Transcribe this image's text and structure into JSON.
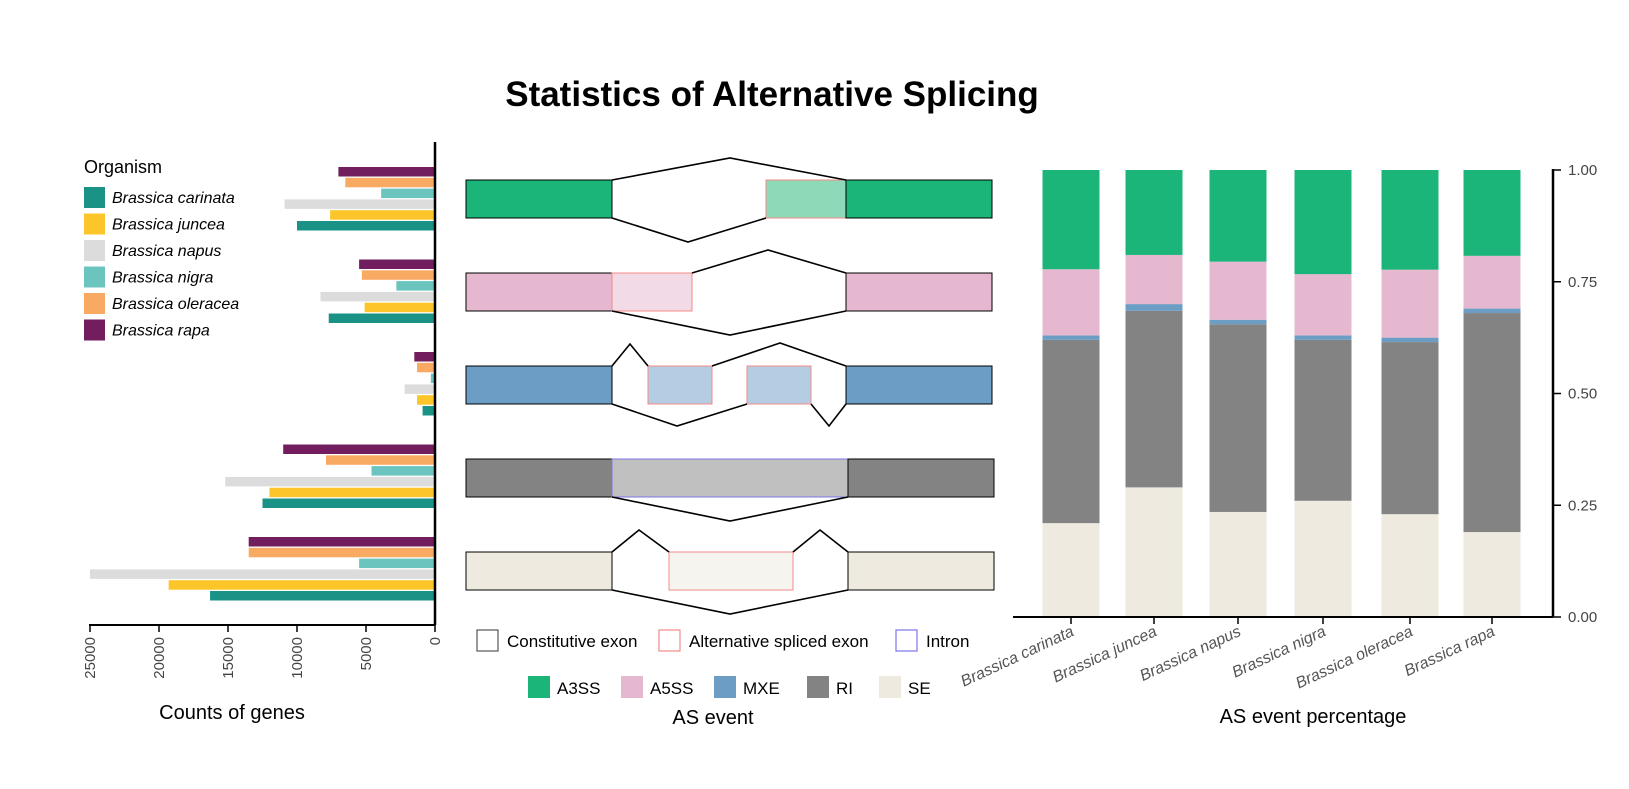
{
  "title": "Statistics of Alternative Splicing",
  "colors": {
    "organisms": [
      "#1a9386",
      "#fcc62a",
      "#dcdcdc",
      "#6cc4bf",
      "#f8aa62",
      "#721d5e"
    ],
    "events": {
      "A3SS": "#1bb479",
      "A5SS": "#e5b8cf",
      "MXE": "#6c9dc5",
      "RI": "#838383",
      "SE": "#eeeadf"
    },
    "events_light": {
      "A3SS": "#8dd9b8",
      "A5SS": "#f2dae6",
      "MXE": "#b5cde3",
      "RI": "#c0c0c1",
      "SE": "#f6f4ee"
    },
    "exon_border_alternative": "#f28a8a",
    "intron_border": "#7b74e8"
  },
  "chart_data": [
    {
      "type": "bar",
      "orientation": "horizontal",
      "xlabel": "Counts of genes",
      "xlim": [
        0,
        25000
      ],
      "x_reversed": true,
      "ticks": [
        0,
        5000,
        10000,
        15000,
        20000,
        25000
      ],
      "legend": {
        "title": "Organism",
        "placement": "top-left",
        "entries": [
          "Brassica carinata",
          "Brassica juncea",
          "Brassica napus",
          "Brassica nigra",
          "Brassica oleracea",
          "Brassica rapa"
        ]
      },
      "categories": [
        "A3SS",
        "A5SS",
        "MXE",
        "RI",
        "SE"
      ],
      "series": [
        {
          "name": "Brassica carinata",
          "values": [
            10000,
            7700,
            900,
            12500,
            16300
          ]
        },
        {
          "name": "Brassica juncea",
          "values": [
            7600,
            5100,
            1300,
            12000,
            19300
          ]
        },
        {
          "name": "Brassica napus",
          "values": [
            10900,
            8300,
            2200,
            15200,
            25000
          ]
        },
        {
          "name": "Brassica nigra",
          "values": [
            3900,
            2800,
            300,
            4600,
            5500
          ]
        },
        {
          "name": "Brassica oleracea",
          "values": [
            6500,
            5300,
            1300,
            7900,
            13500
          ]
        },
        {
          "name": "Brassica rapa",
          "values": [
            7000,
            5500,
            1500,
            11000,
            13500
          ]
        }
      ]
    },
    {
      "type": "bar",
      "stacked": true,
      "xlabel": "AS event percentage",
      "ylim": [
        0,
        1
      ],
      "y_axis_side": "right",
      "yticks": [
        "0.00",
        "0.25",
        "0.50",
        "0.75",
        "1.00"
      ],
      "categories": [
        "Brassica carinata",
        "Brassica juncea",
        "Brassica napus",
        "Brassica nigra",
        "Brassica oleracea",
        "Brassica rapa"
      ],
      "series": [
        {
          "name": "SE",
          "values": [
            0.21,
            0.29,
            0.235,
            0.26,
            0.23,
            0.19
          ]
        },
        {
          "name": "RI",
          "values": [
            0.41,
            0.395,
            0.42,
            0.36,
            0.385,
            0.49
          ]
        },
        {
          "name": "MXE",
          "values": [
            0.01,
            0.015,
            0.01,
            0.01,
            0.01,
            0.01
          ]
        },
        {
          "name": "A5SS",
          "values": [
            0.148,
            0.11,
            0.13,
            0.137,
            0.152,
            0.118
          ]
        },
        {
          "name": "A3SS",
          "values": [
            0.222,
            0.19,
            0.205,
            0.233,
            0.223,
            0.192
          ]
        }
      ]
    }
  ],
  "diagram": {
    "xlabel": "AS event",
    "exon_legend": [
      "Constitutive exon",
      "Alternative spliced exon",
      "Intron"
    ],
    "event_legend": [
      "A3SS",
      "A5SS",
      "MXE",
      "RI",
      "SE"
    ]
  }
}
